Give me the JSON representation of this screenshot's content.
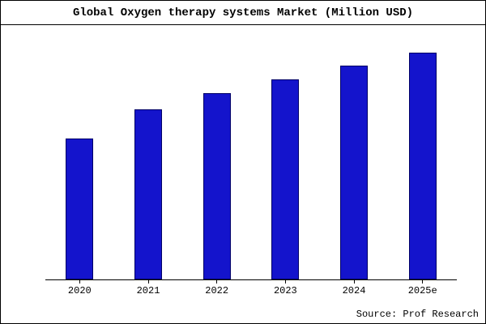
{
  "chart_data": {
    "type": "bar",
    "title": "Global Oxygen therapy systems Market (Million USD)",
    "categories": [
      "2020",
      "2021",
      "2022",
      "2023",
      "2024",
      "2025e"
    ],
    "values": [
      62,
      75,
      82,
      88,
      94,
      100
    ],
    "xlabel": "",
    "ylabel": "",
    "ylim": [
      0,
      107
    ],
    "y_axis_visible": false,
    "grid": false,
    "legend": "none",
    "bar_color": "#1414cc",
    "bar_border_color": "#000066",
    "source": "Source: Prof Research"
  }
}
